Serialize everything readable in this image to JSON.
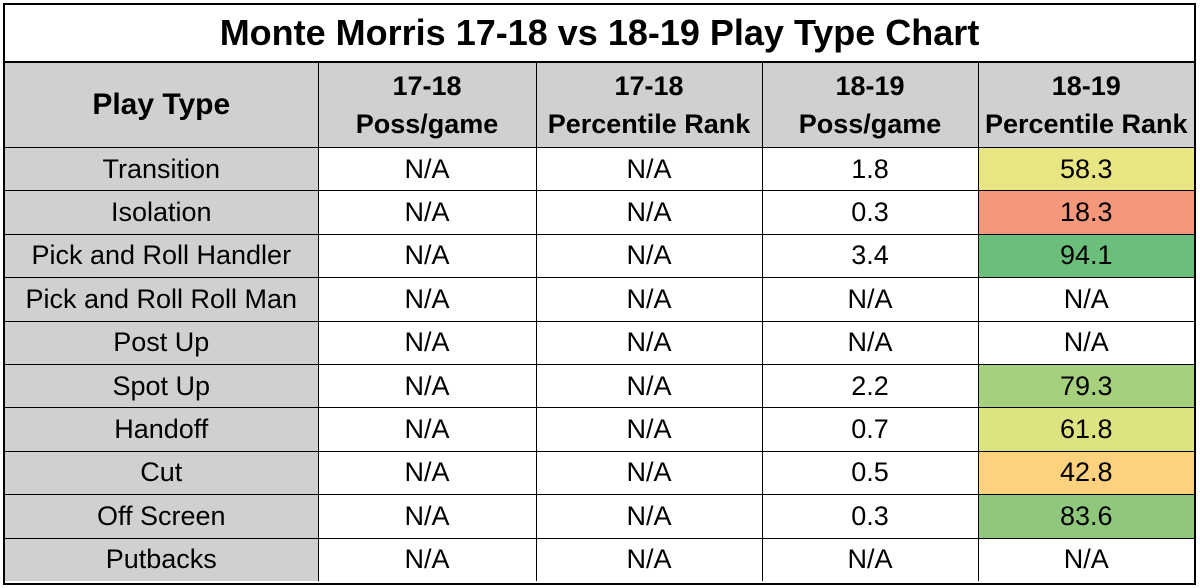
{
  "chart_data": {
    "type": "table",
    "title": "Monte Morris 17-18 vs 18-19 Play Type Chart",
    "columns": [
      {
        "top": "Play Type",
        "bottom": ""
      },
      {
        "top": "17-18",
        "bottom": "Poss/game"
      },
      {
        "top": "17-18",
        "bottom": "Percentile Rank"
      },
      {
        "top": "18-19",
        "bottom": "Poss/game"
      },
      {
        "top": "18-19",
        "bottom": "Percentile Rank"
      }
    ],
    "rows": [
      {
        "play_type": "Transition",
        "poss_1718": "N/A",
        "pct_1718": "N/A",
        "poss_1819": "1.8",
        "pct_1819": "58.3",
        "pct_1819_color": "#e8e583"
      },
      {
        "play_type": "Isolation",
        "poss_1718": "N/A",
        "pct_1718": "N/A",
        "poss_1819": "0.3",
        "pct_1819": "18.3",
        "pct_1819_color": "#f4977b"
      },
      {
        "play_type": "Pick and Roll Handler",
        "poss_1718": "N/A",
        "pct_1718": "N/A",
        "poss_1819": "3.4",
        "pct_1819": "94.1",
        "pct_1819_color": "#6cbf7b"
      },
      {
        "play_type": "Pick and Roll Roll Man",
        "poss_1718": "N/A",
        "pct_1718": "N/A",
        "poss_1819": "N/A",
        "pct_1819": "N/A",
        "pct_1819_color": "#ffffff"
      },
      {
        "play_type": "Post Up",
        "poss_1718": "N/A",
        "pct_1718": "N/A",
        "poss_1819": "N/A",
        "pct_1819": "N/A",
        "pct_1819_color": "#ffffff"
      },
      {
        "play_type": "Spot Up",
        "poss_1718": "N/A",
        "pct_1718": "N/A",
        "poss_1819": "2.2",
        "pct_1819": "79.3",
        "pct_1819_color": "#a6d07e"
      },
      {
        "play_type": "Handoff",
        "poss_1718": "N/A",
        "pct_1718": "N/A",
        "poss_1819": "0.7",
        "pct_1819": "61.8",
        "pct_1819_color": "#dde381"
      },
      {
        "play_type": "Cut",
        "poss_1718": "N/A",
        "pct_1718": "N/A",
        "poss_1819": "0.5",
        "pct_1819": "42.8",
        "pct_1819_color": "#fdd27f"
      },
      {
        "play_type": "Off Screen",
        "poss_1718": "N/A",
        "pct_1718": "N/A",
        "poss_1819": "0.3",
        "pct_1819": "83.6",
        "pct_1819_color": "#8fc77d"
      },
      {
        "play_type": "Putbacks",
        "poss_1718": "N/A",
        "pct_1718": "N/A",
        "poss_1819": "N/A",
        "pct_1819": "N/A",
        "pct_1819_color": "#ffffff"
      }
    ]
  }
}
